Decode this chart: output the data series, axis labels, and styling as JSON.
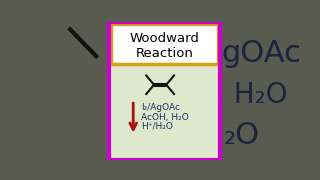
{
  "title_line1": "Woodward",
  "title_line2": "Reaction",
  "title_box_color": "#D4A017",
  "title_bg_color": "#FFFFFF",
  "panel_bg_color": "#DDE8CC",
  "outer_bg_color": "#595A50",
  "border_color": "#CC00CC",
  "arrow_color": "#AA1010",
  "reagent_line1": "I₂/AgOAc",
  "reagent_line2": "AcOH, H₂O",
  "reagent_line3": "H⁺/H₂O",
  "right_text1": "gOAc",
  "right_text2": "H₂O",
  "right_text3": "₂O",
  "left_slash_color": "#111111",
  "reagent_color": "#1A2F6A",
  "alkene_color": "#111111",
  "right_text_color": "#1A2440"
}
